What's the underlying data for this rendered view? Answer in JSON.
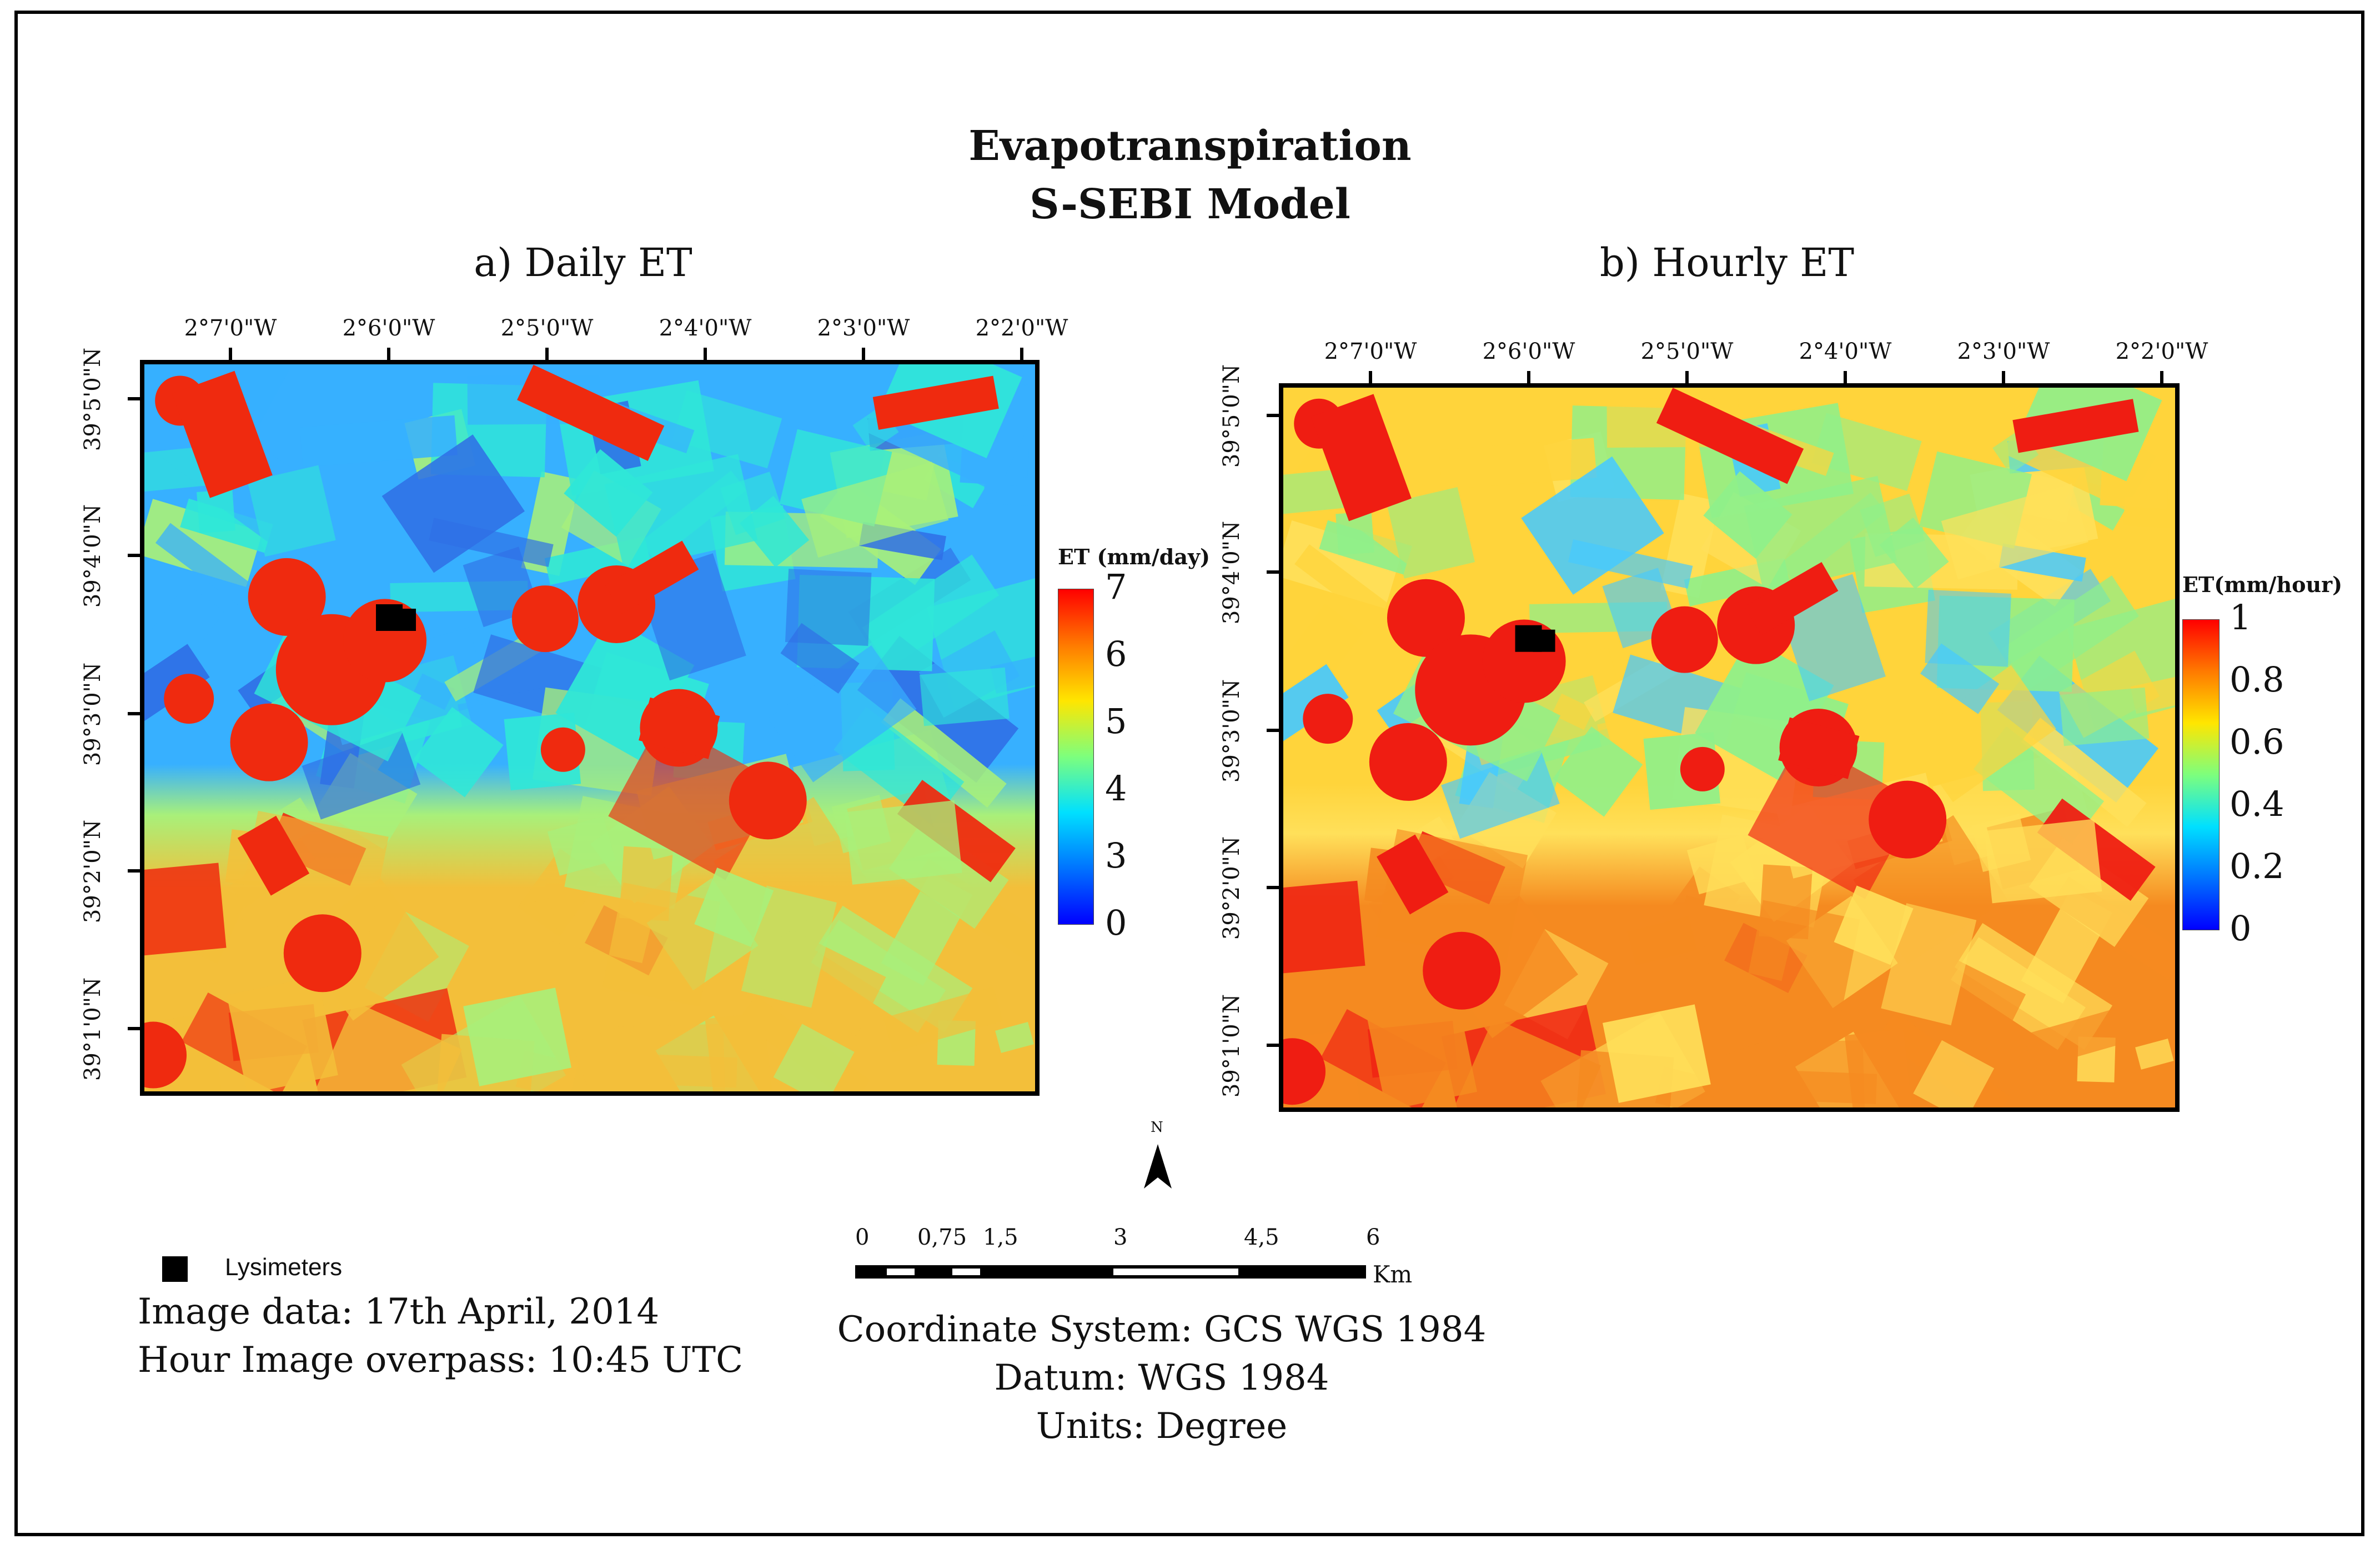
{
  "header": {
    "title_line1": "Evapotranspiration",
    "title_line2": "S-SEBI Model"
  },
  "panels": [
    {
      "title": "a) Daily ET",
      "lon_ticks": [
        "2°7'0\"W",
        "2°6'0\"W",
        "2°5'0\"W",
        "2°4'0\"W",
        "2°3'0\"W",
        "2°2'0\"W"
      ],
      "lat_ticks": [
        "39°5'0\"N",
        "39°4'0\"N",
        "39°3'0\"N",
        "39°2'0\"N",
        "39°1'0\"N"
      ],
      "legend": {
        "title": "ET (mm/day)",
        "labels": [
          "7",
          "6",
          "5",
          "4",
          "3",
          "0"
        ]
      },
      "palette": {
        "background_top": "#37b0ff",
        "background_bottom": "#f3bf3a",
        "hot": "#ef2a0f",
        "dark_blue": "#2f6fe6",
        "cyan": "#2fe7d8",
        "green": "#a8f07a"
      }
    },
    {
      "title": "b) Hourly ET",
      "lon_ticks": [
        "2°7'0\"W",
        "2°6'0\"W",
        "2°5'0\"W",
        "2°4'0\"W",
        "2°3'0\"W",
        "2°2'0\"W"
      ],
      "lat_ticks": [
        "39°5'0\"N",
        "39°4'0\"N",
        "39°3'0\"N",
        "39°2'0\"N",
        "39°1'0\"N"
      ],
      "legend": {
        "title": "ET(mm/hour)",
        "labels": [
          "1",
          "0.8",
          "0.6",
          "0.4",
          "0.2",
          "0"
        ]
      },
      "palette": {
        "background_top": "#ffd43b",
        "background_bottom": "#f58a20",
        "hot": "#ef1d12",
        "dark_blue": "#46c9ff",
        "cyan": "#8ff08a",
        "green": "#ffe05a"
      }
    }
  ],
  "colorbar_colors": [
    "#ff0000",
    "#ff7a00",
    "#ffe600",
    "#7dff7d",
    "#00e0ff",
    "#0073ff",
    "#0000ff"
  ],
  "north_arrow": {
    "label": "N"
  },
  "scalebar": {
    "ticks": [
      "0",
      "0,75",
      "1,5",
      "3",
      "4,5",
      "6"
    ],
    "unit": "Km"
  },
  "legend_items": {
    "lysimeters": "Lysimeters"
  },
  "info_left": {
    "image_date": "Image data: 17th April, 2014",
    "overpass": "Hour Image overpass: 10:45 UTC"
  },
  "info_center": {
    "coord_system": "Coordinate System: GCS WGS 1984",
    "datum": "Datum: WGS 1984",
    "units": "Units: Degree"
  }
}
